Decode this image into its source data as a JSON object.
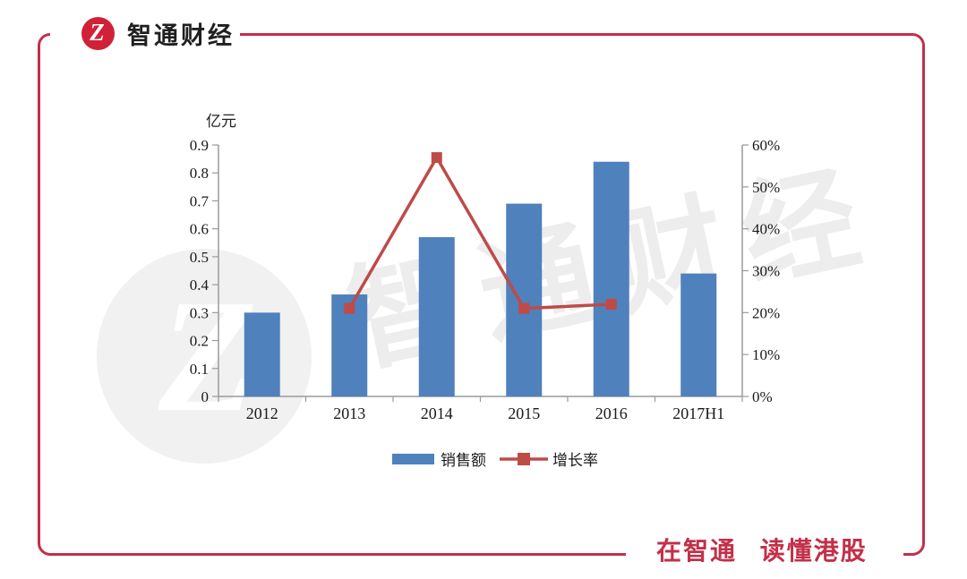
{
  "brand": {
    "logo_glyph": "Z",
    "title": "智通财经",
    "logo_red": "#d02139",
    "frame_red": "#c23049"
  },
  "footer": {
    "slogan": "在智通 读懂港股"
  },
  "watermark": {
    "text": "智通财经",
    "logo_glyph": "Z",
    "color": "#ededed"
  },
  "chart_data": {
    "type": "bar",
    "subtype": "combo-bar-line",
    "title": "",
    "categories": [
      "2012",
      "2013",
      "2014",
      "2015",
      "2016",
      "2017H1"
    ],
    "series": [
      {
        "name": "销售额",
        "type": "bar",
        "axis": "left",
        "color": "#4f81bd",
        "values": [
          0.3,
          0.365,
          0.57,
          0.69,
          0.84,
          0.44
        ]
      },
      {
        "name": "增长率",
        "type": "line",
        "axis": "right",
        "color": "#be4b48",
        "unit": "%",
        "values": [
          null,
          21,
          57,
          21,
          22,
          null
        ]
      }
    ],
    "left_axis": {
      "title": "亿元",
      "min": 0,
      "max": 0.9,
      "step": 0.1,
      "tick_labels": [
        "0",
        "0.1",
        "0.2",
        "0.3",
        "0.4",
        "0.5",
        "0.6",
        "0.7",
        "0.8",
        "0.9"
      ]
    },
    "right_axis": {
      "min": 0,
      "max": 60,
      "step": 10,
      "unit": "%",
      "tick_labels": [
        "0%",
        "10%",
        "20%",
        "30%",
        "40%",
        "50%",
        "60%"
      ]
    },
    "grid": false,
    "legend_position": "bottom-center",
    "axis_color": "#9a9a9a",
    "text_color": "#1a1a1a"
  }
}
